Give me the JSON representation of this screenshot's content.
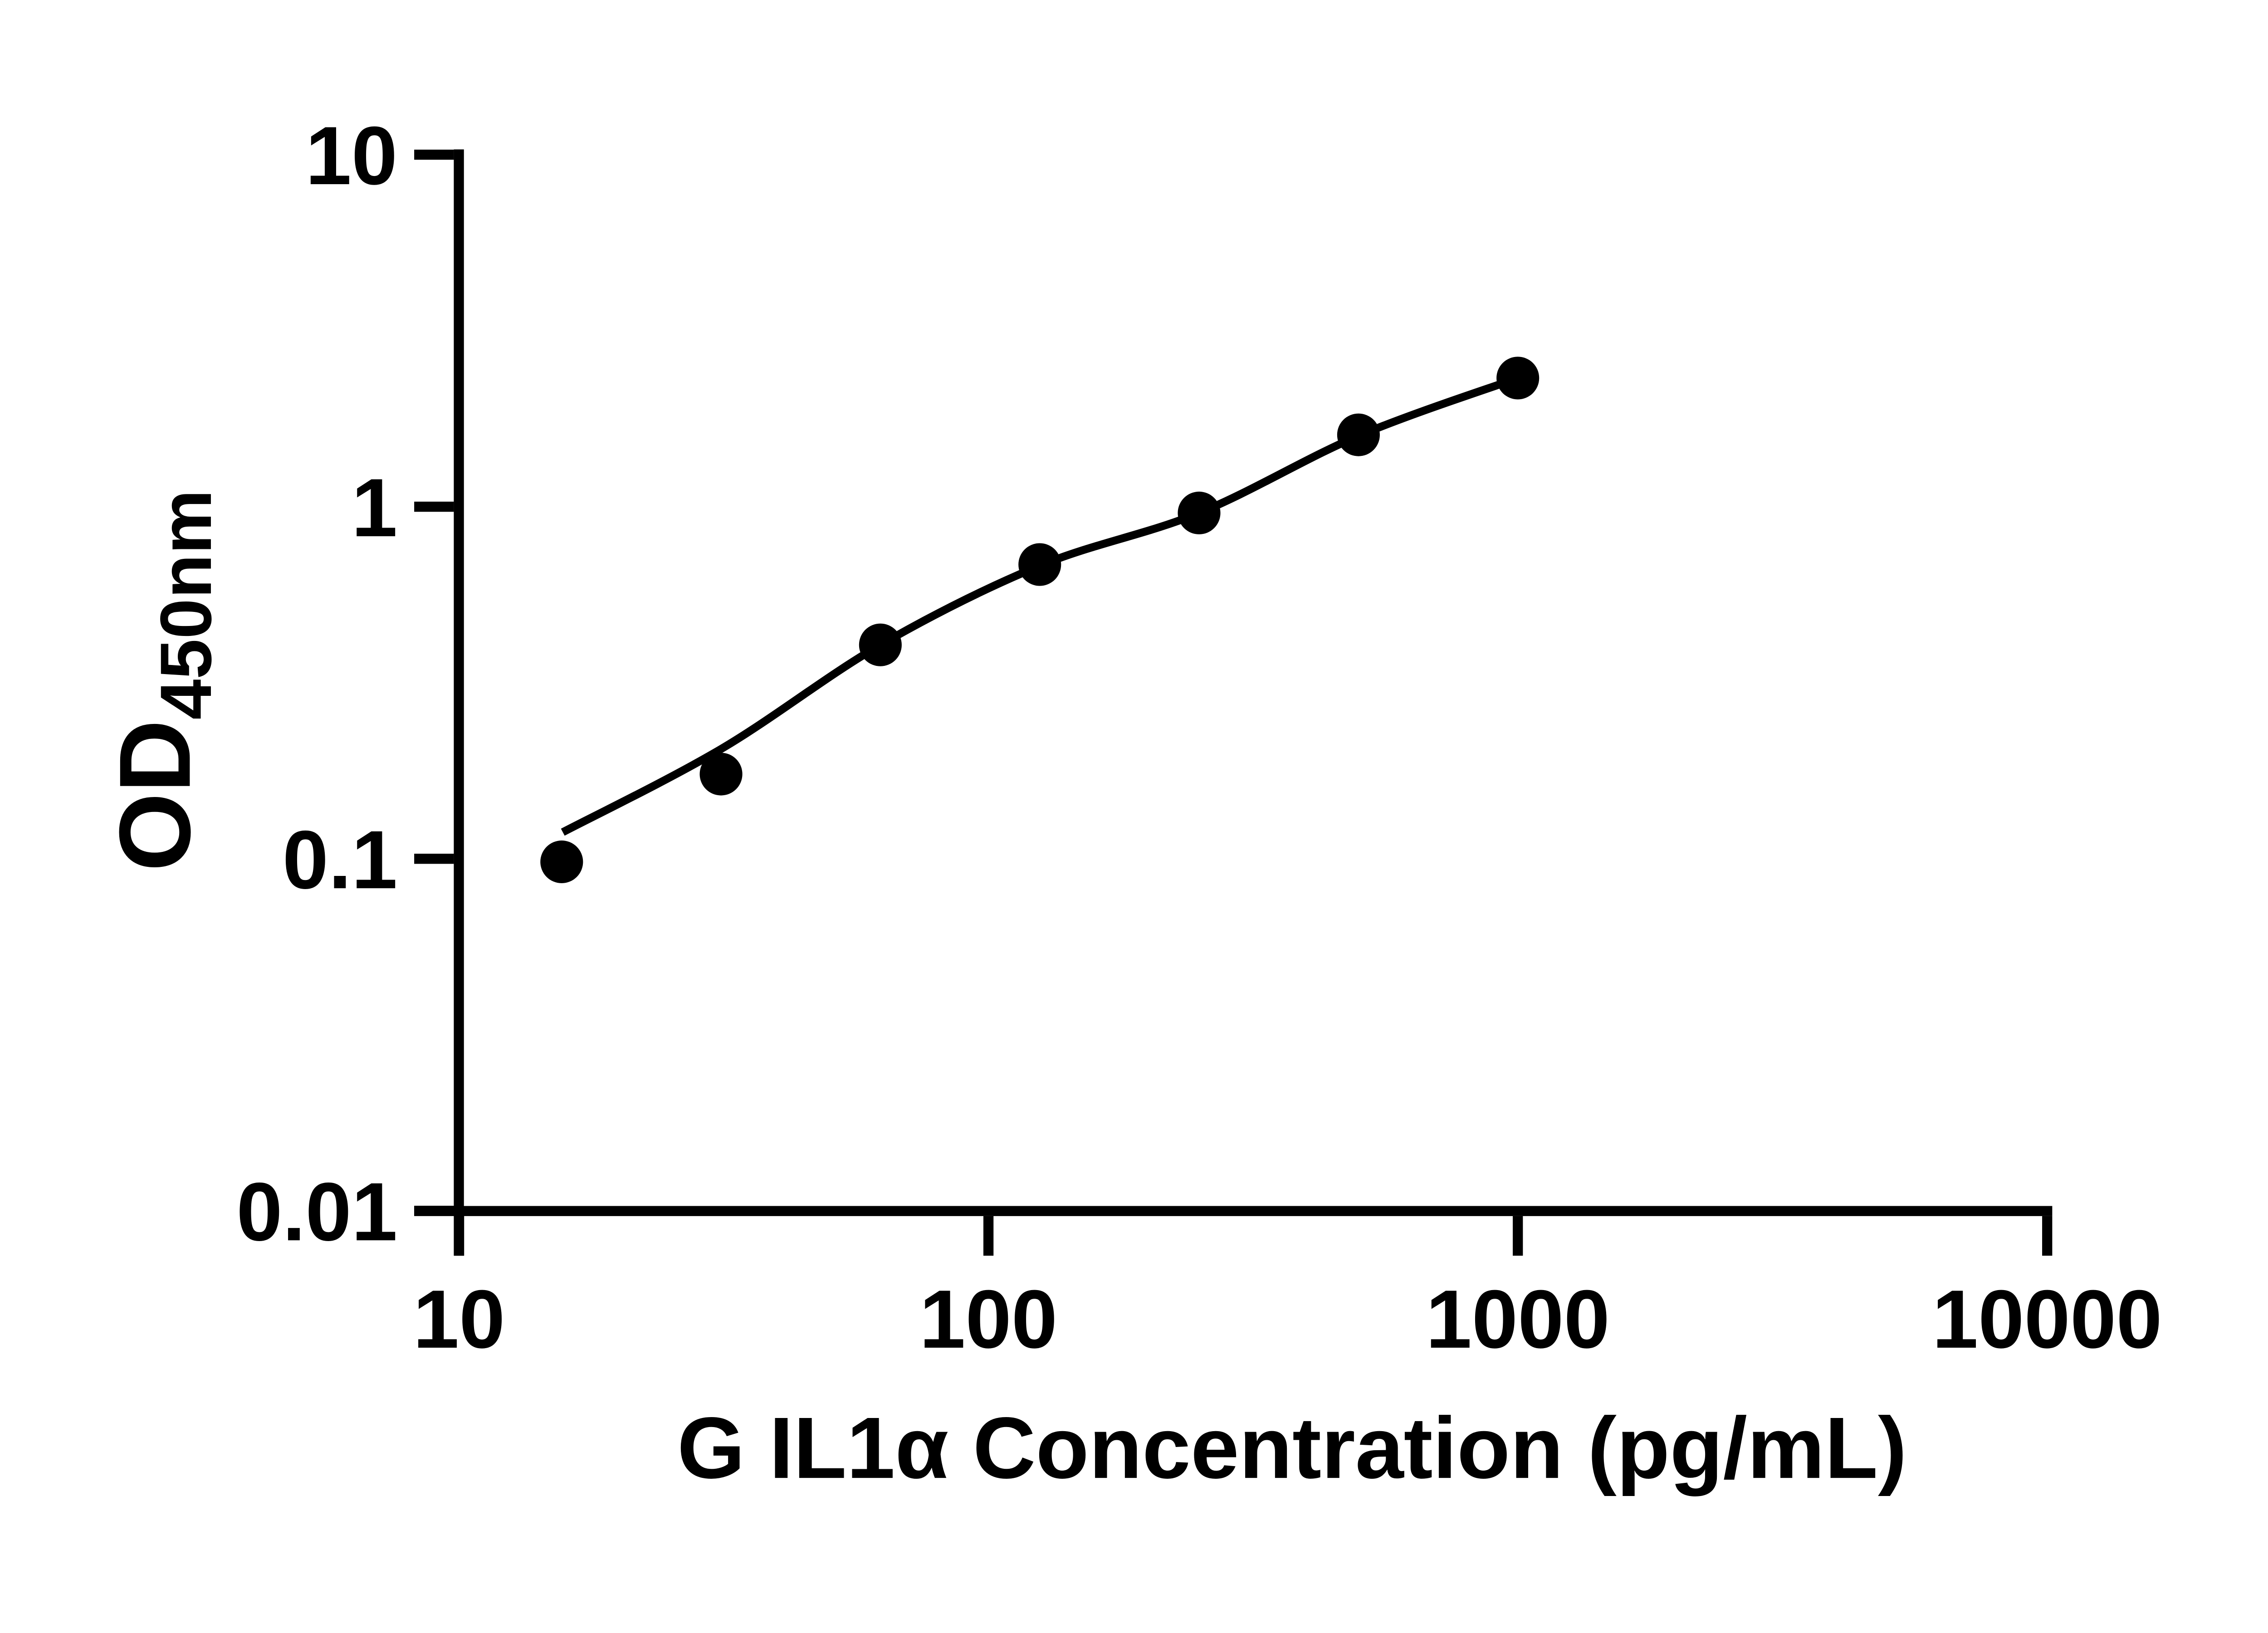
{
  "chart_data": {
    "type": "scatter",
    "title": "",
    "xlabel": "G IL1α Concentration (pg/mL)",
    "ylabel": "OD",
    "ylabel_subscript": "450nm",
    "x_scale": "log",
    "y_scale": "log",
    "xlim": [
      10,
      10000
    ],
    "ylim": [
      0.01,
      10
    ],
    "x_ticks": [
      10,
      100,
      1000,
      10000
    ],
    "x_tick_labels": [
      "10",
      "100",
      "1000",
      "10000"
    ],
    "y_ticks": [
      10,
      1,
      0.1,
      0.01
    ],
    "y_tick_labels": [
      "10",
      "1",
      "0.1",
      "0.01"
    ],
    "grid": false,
    "legend": "none",
    "marker_color": "#000000",
    "line_color": "#000000",
    "axis_color": "#000000",
    "background_color": "#ffffff",
    "series": [
      {
        "name": "standard-points",
        "type": "scatter",
        "marker": "filled-circle",
        "x": [
          15.625,
          31.25,
          62.5,
          125,
          250,
          500,
          1000
        ],
        "y": [
          0.098,
          0.174,
          0.405,
          0.685,
          0.96,
          1.6,
          2.32
        ]
      },
      {
        "name": "fitted-curve",
        "type": "line",
        "x": [
          15.7,
          31.25,
          62.5,
          125,
          250,
          500,
          1000
        ],
        "y": [
          0.119,
          0.205,
          0.405,
          0.68,
          0.96,
          1.59,
          2.32
        ]
      }
    ]
  }
}
